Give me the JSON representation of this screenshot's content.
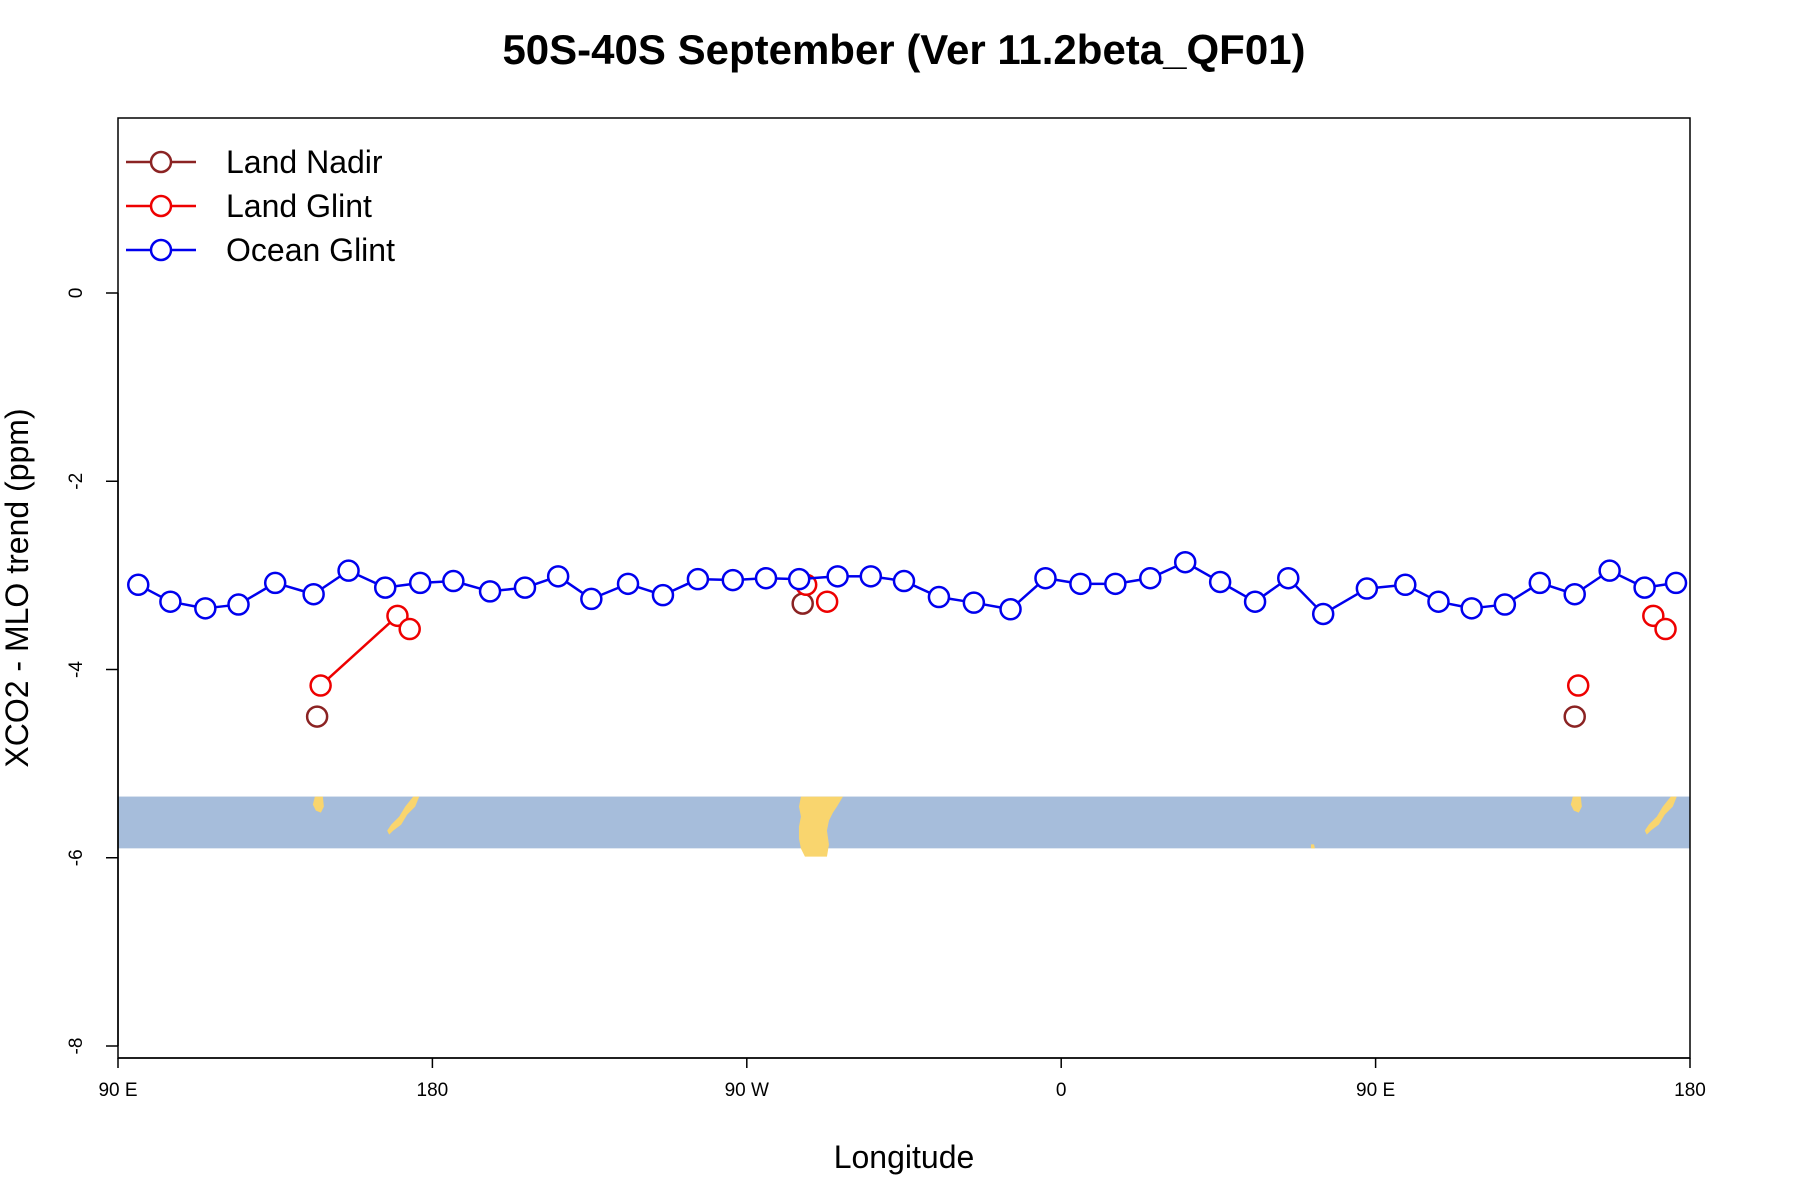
{
  "chart_data": {
    "type": "line",
    "title": "50S-40S September (Ver 11.2beta_QF01)",
    "xlabel": "Longitude",
    "ylabel": "XCO2 - MLO trend (ppm)",
    "xlim": [
      90,
      540
    ],
    "ylim": [
      -8,
      1.8
    ],
    "x_ticks": [
      {
        "value": 90,
        "label": "90 E"
      },
      {
        "value": 180,
        "label": "180"
      },
      {
        "value": 270,
        "label": "90 W"
      },
      {
        "value": 360,
        "label": "0"
      },
      {
        "value": 450,
        "label": "90 E"
      },
      {
        "value": 540,
        "label": "180"
      }
    ],
    "y_ticks": [
      {
        "value": 0,
        "label": "0"
      },
      {
        "value": -2,
        "label": "-2"
      },
      {
        "value": -4,
        "label": "-4"
      },
      {
        "value": -6,
        "label": "-6"
      },
      {
        "value": -8,
        "label": "-8"
      }
    ],
    "legend": {
      "position": "top-left",
      "entries": [
        {
          "label": "Land Nadir",
          "color": "#8B2323"
        },
        {
          "label": "Land Glint",
          "color": "#EE0000"
        },
        {
          "label": "Ocean Glint",
          "color": "#0000EE"
        }
      ]
    },
    "map_inset": {
      "y_range": [
        -5.9,
        -5.35
      ],
      "ocean_color": "#A6BDDB",
      "land_color": "#F9D56E"
    },
    "series": [
      {
        "name": "Land Nadir",
        "color": "#8B2323",
        "points": [
          [
            147,
            -4.5
          ],
          [
            286,
            -3.3
          ],
          [
            507,
            -4.5
          ]
        ],
        "connected": false
      },
      {
        "name": "Land Glint",
        "color": "#EE0000",
        "points": [
          [
            148,
            -4.17
          ],
          [
            170,
            -3.43
          ],
          [
            173.5,
            -3.57
          ],
          [
            287,
            -3.1
          ],
          [
            293,
            -3.28
          ],
          [
            508,
            -4.17
          ],
          [
            529.5,
            -3.43
          ],
          [
            533,
            -3.57
          ]
        ],
        "segments": [
          [
            0,
            1
          ]
        ],
        "connected": false
      },
      {
        "name": "Ocean Glint",
        "color": "#0000EE",
        "connected": true,
        "points": [
          [
            95.8,
            -3.1
          ],
          [
            105,
            -3.28
          ],
          [
            115,
            -3.35
          ],
          [
            124.5,
            -3.31
          ],
          [
            135,
            -3.08
          ],
          [
            146,
            -3.2
          ],
          [
            156,
            -2.95
          ],
          [
            166.5,
            -3.13
          ],
          [
            176.5,
            -3.08
          ],
          [
            186,
            -3.06
          ],
          [
            196.5,
            -3.17
          ],
          [
            206.5,
            -3.13
          ],
          [
            216,
            -3.01
          ],
          [
            225.5,
            -3.25
          ],
          [
            236,
            -3.09
          ],
          [
            246,
            -3.21
          ],
          [
            256,
            -3.04
          ],
          [
            266,
            -3.05
          ],
          [
            275.5,
            -3.03
          ],
          [
            285,
            -3.04
          ],
          [
            296,
            -3.01
          ],
          [
            305.5,
            -3.01
          ],
          [
            315,
            -3.06
          ],
          [
            325,
            -3.23
          ],
          [
            335,
            -3.29
          ],
          [
            345.5,
            -3.36
          ],
          [
            355.5,
            -3.03
          ],
          [
            365.5,
            -3.09
          ],
          [
            375.5,
            -3.09
          ],
          [
            385.5,
            -3.03
          ],
          [
            395.5,
            -2.86
          ],
          [
            405.5,
            -3.07
          ],
          [
            415.5,
            -3.28
          ],
          [
            425,
            -3.03
          ],
          [
            435,
            -3.41
          ],
          [
            447.5,
            -3.14
          ],
          [
            458.5,
            -3.1
          ],
          [
            468,
            -3.28
          ],
          [
            477.5,
            -3.35
          ],
          [
            487,
            -3.31
          ],
          [
            497,
            -3.08
          ],
          [
            507,
            -3.2
          ],
          [
            517,
            -2.95
          ],
          [
            527,
            -3.13
          ],
          [
            536,
            -3.08
          ]
        ]
      }
    ]
  }
}
